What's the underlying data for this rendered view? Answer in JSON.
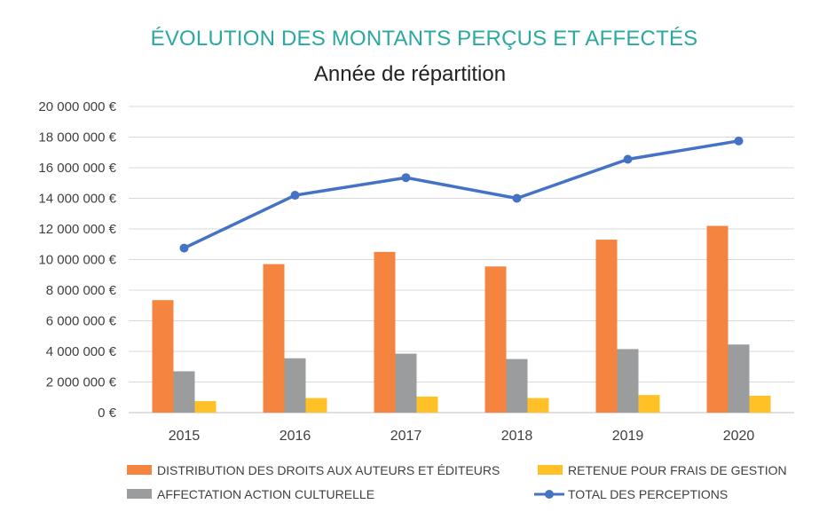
{
  "chart_data": {
    "type": "bar",
    "title": "ÉVOLUTION DES MONTANTS PERÇUS ET AFFECTÉS",
    "subtitle": "Année de répartition",
    "categories": [
      "2015",
      "2016",
      "2017",
      "2018",
      "2019",
      "2020"
    ],
    "ylim": [
      0,
      20000000
    ],
    "yticks": [
      "0 €",
      "2 000 000 €",
      "4 000 000 €",
      "6 000 000 €",
      "8 000 000 €",
      "10 000 000 €",
      "12 000 000 €",
      "14 000 000 €",
      "16 000 000 €",
      "18 000 000 €",
      "20 000 000 €"
    ],
    "grid": true,
    "legend_position": "bottom",
    "series": [
      {
        "name": "DISTRIBUTION DES DROITS AUX AUTEURS ET ÉDITEURS",
        "type": "bar",
        "color": "#F4843F",
        "values": [
          7350000,
          9700000,
          10500000,
          9550000,
          11300000,
          12200000
        ]
      },
      {
        "name": "AFFECTATION ACTION CULTURELLE",
        "type": "bar",
        "color": "#9A9C9E",
        "values": [
          2700000,
          3550000,
          3850000,
          3500000,
          4150000,
          4450000
        ]
      },
      {
        "name": "RETENUE POUR FRAIS DE GESTION",
        "type": "bar",
        "color": "#FFC125",
        "values": [
          750000,
          950000,
          1050000,
          950000,
          1150000,
          1100000
        ]
      },
      {
        "name": "TOTAL DES PERCEPTIONS",
        "type": "line",
        "color": "#4472C4",
        "values": [
          10750000,
          14200000,
          15350000,
          14000000,
          16550000,
          17750000
        ]
      }
    ],
    "legend_order": [
      0,
      2,
      1,
      3
    ],
    "title_color": "#2BA8A0"
  }
}
